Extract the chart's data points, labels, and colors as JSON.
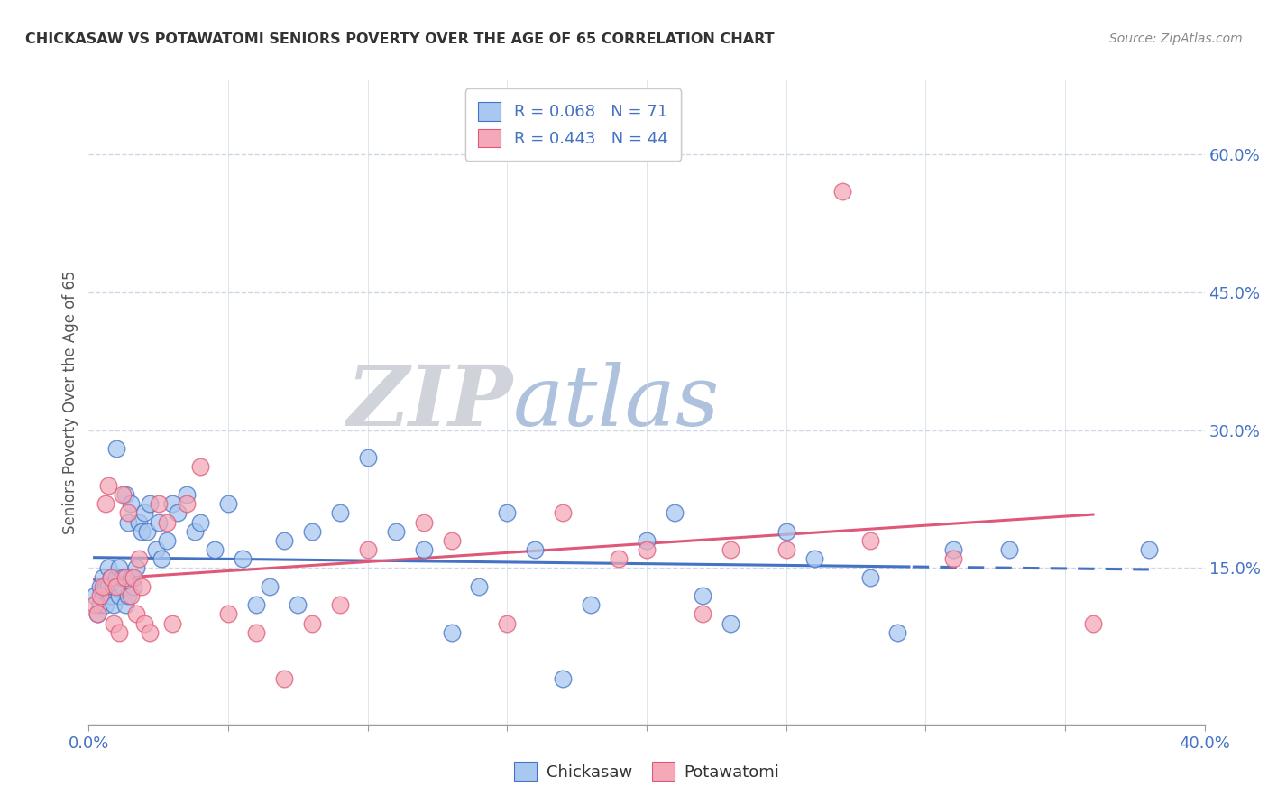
{
  "title": "CHICKASAW VS POTAWATOMI SENIORS POVERTY OVER THE AGE OF 65 CORRELATION CHART",
  "source": "Source: ZipAtlas.com",
  "ylabel": "Seniors Poverty Over the Age of 65",
  "xlim": [
    0.0,
    0.4
  ],
  "ylim": [
    -0.02,
    0.68
  ],
  "yticks_right": [
    0.15,
    0.3,
    0.45,
    0.6
  ],
  "ytick_labels_right": [
    "15.0%",
    "30.0%",
    "45.0%",
    "60.0%"
  ],
  "chickasaw_color": "#a8c8f0",
  "potawatomi_color": "#f4a8b8",
  "chickasaw_line_color": "#4472c4",
  "potawatomi_line_color": "#e05878",
  "watermark_zip": "ZIP",
  "watermark_atlas": "atlas",
  "watermark_color_zip": "#c0ccdc",
  "watermark_color_atlas": "#a8c0dc",
  "legend_R_chickasaw": "0.068",
  "legend_N_chickasaw": "71",
  "legend_R_potawatomi": "0.443",
  "legend_N_potawatomi": "44",
  "chickasaw_points_x": [
    0.002,
    0.003,
    0.004,
    0.004,
    0.005,
    0.005,
    0.006,
    0.006,
    0.007,
    0.007,
    0.008,
    0.008,
    0.009,
    0.009,
    0.01,
    0.01,
    0.011,
    0.011,
    0.012,
    0.012,
    0.013,
    0.013,
    0.014,
    0.014,
    0.015,
    0.015,
    0.016,
    0.017,
    0.018,
    0.019,
    0.02,
    0.021,
    0.022,
    0.024,
    0.025,
    0.026,
    0.028,
    0.03,
    0.032,
    0.035,
    0.038,
    0.04,
    0.045,
    0.05,
    0.055,
    0.06,
    0.065,
    0.07,
    0.075,
    0.08,
    0.09,
    0.1,
    0.11,
    0.12,
    0.13,
    0.14,
    0.15,
    0.16,
    0.17,
    0.18,
    0.2,
    0.21,
    0.22,
    0.23,
    0.25,
    0.26,
    0.28,
    0.29,
    0.31,
    0.33,
    0.38
  ],
  "chickasaw_points_y": [
    0.12,
    0.1,
    0.13,
    0.11,
    0.14,
    0.12,
    0.13,
    0.11,
    0.15,
    0.13,
    0.12,
    0.14,
    0.11,
    0.13,
    0.28,
    0.14,
    0.12,
    0.15,
    0.13,
    0.14,
    0.11,
    0.23,
    0.12,
    0.2,
    0.22,
    0.14,
    0.13,
    0.15,
    0.2,
    0.19,
    0.21,
    0.19,
    0.22,
    0.17,
    0.2,
    0.16,
    0.18,
    0.22,
    0.21,
    0.23,
    0.19,
    0.2,
    0.17,
    0.22,
    0.16,
    0.11,
    0.13,
    0.18,
    0.11,
    0.19,
    0.21,
    0.27,
    0.19,
    0.17,
    0.08,
    0.13,
    0.21,
    0.17,
    0.03,
    0.11,
    0.18,
    0.21,
    0.12,
    0.09,
    0.19,
    0.16,
    0.14,
    0.08,
    0.17,
    0.17,
    0.17
  ],
  "potawatomi_points_x": [
    0.002,
    0.003,
    0.004,
    0.005,
    0.006,
    0.007,
    0.008,
    0.009,
    0.01,
    0.011,
    0.012,
    0.013,
    0.014,
    0.015,
    0.016,
    0.017,
    0.018,
    0.019,
    0.02,
    0.022,
    0.025,
    0.028,
    0.03,
    0.035,
    0.04,
    0.05,
    0.06,
    0.07,
    0.08,
    0.09,
    0.1,
    0.12,
    0.13,
    0.15,
    0.17,
    0.19,
    0.2,
    0.22,
    0.23,
    0.25,
    0.27,
    0.28,
    0.31,
    0.36
  ],
  "potawatomi_points_y": [
    0.11,
    0.1,
    0.12,
    0.13,
    0.22,
    0.24,
    0.14,
    0.09,
    0.13,
    0.08,
    0.23,
    0.14,
    0.21,
    0.12,
    0.14,
    0.1,
    0.16,
    0.13,
    0.09,
    0.08,
    0.22,
    0.2,
    0.09,
    0.22,
    0.26,
    0.1,
    0.08,
    0.03,
    0.09,
    0.11,
    0.17,
    0.2,
    0.18,
    0.09,
    0.21,
    0.16,
    0.17,
    0.1,
    0.17,
    0.17,
    0.56,
    0.18,
    0.16,
    0.09
  ],
  "grid_color": "#c8d4e4",
  "bg_color": "#ffffff",
  "tick_color": "#4472c4",
  "label_color": "#555555",
  "title_color": "#333333"
}
